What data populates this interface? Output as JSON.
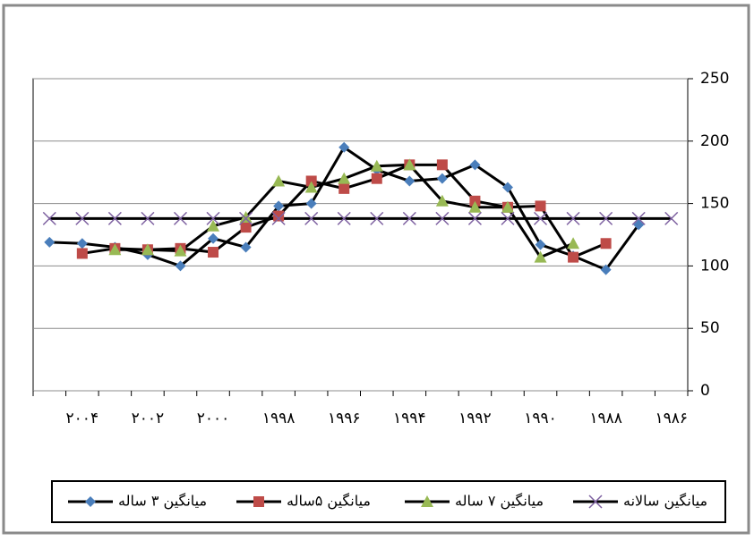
{
  "chart_data": {
    "type": "line",
    "categories": [
      null,
      "۲۰۰۴",
      null,
      "۲۰۰۲",
      null,
      "۲۰۰۰",
      null,
      "۱۹۹۸",
      null,
      "۱۹۹۶",
      null,
      "۱۹۹۴",
      null,
      "۱۹۹۲",
      null,
      "۱۹۹۰",
      null,
      "۱۹۸۸",
      null,
      "۱۹۸۶"
    ],
    "series": [
      {
        "name": "میانگین ۳ ساله",
        "color": "#4a7ebb",
        "marker": "diamond",
        "values": [
          119,
          118,
          115,
          109,
          100,
          122,
          115,
          148,
          150,
          195,
          177,
          168,
          170,
          181,
          163,
          117,
          108,
          97,
          133,
          null
        ]
      },
      {
        "name": "میانگین ۵ساله",
        "color": "#be4b48",
        "marker": "square",
        "values": [
          null,
          110,
          114,
          113,
          114,
          111,
          131,
          140,
          168,
          162,
          170,
          181,
          181,
          152,
          147,
          148,
          107,
          118,
          null,
          null
        ]
      },
      {
        "name": "میانگین ۷ ساله",
        "color": "#98b954",
        "marker": "triangle",
        "values": [
          null,
          null,
          113,
          113,
          112,
          132,
          139,
          168,
          163,
          170,
          180,
          181,
          152,
          147,
          147,
          107,
          118,
          null,
          null,
          null
        ]
      },
      {
        "name": "میانگین سالانه",
        "color": "#7d60a0",
        "marker": "x",
        "values": [
          138,
          138,
          138,
          138,
          138,
          138,
          138,
          138,
          138,
          138,
          138,
          138,
          138,
          138,
          138,
          138,
          138,
          138,
          138,
          138
        ]
      }
    ],
    "line_color": "#000000",
    "ylim": [
      0,
      250
    ],
    "yticks": [
      0,
      50,
      100,
      150,
      200,
      250
    ],
    "y_axis_side": "right",
    "grid": true,
    "legend": "bottom"
  }
}
